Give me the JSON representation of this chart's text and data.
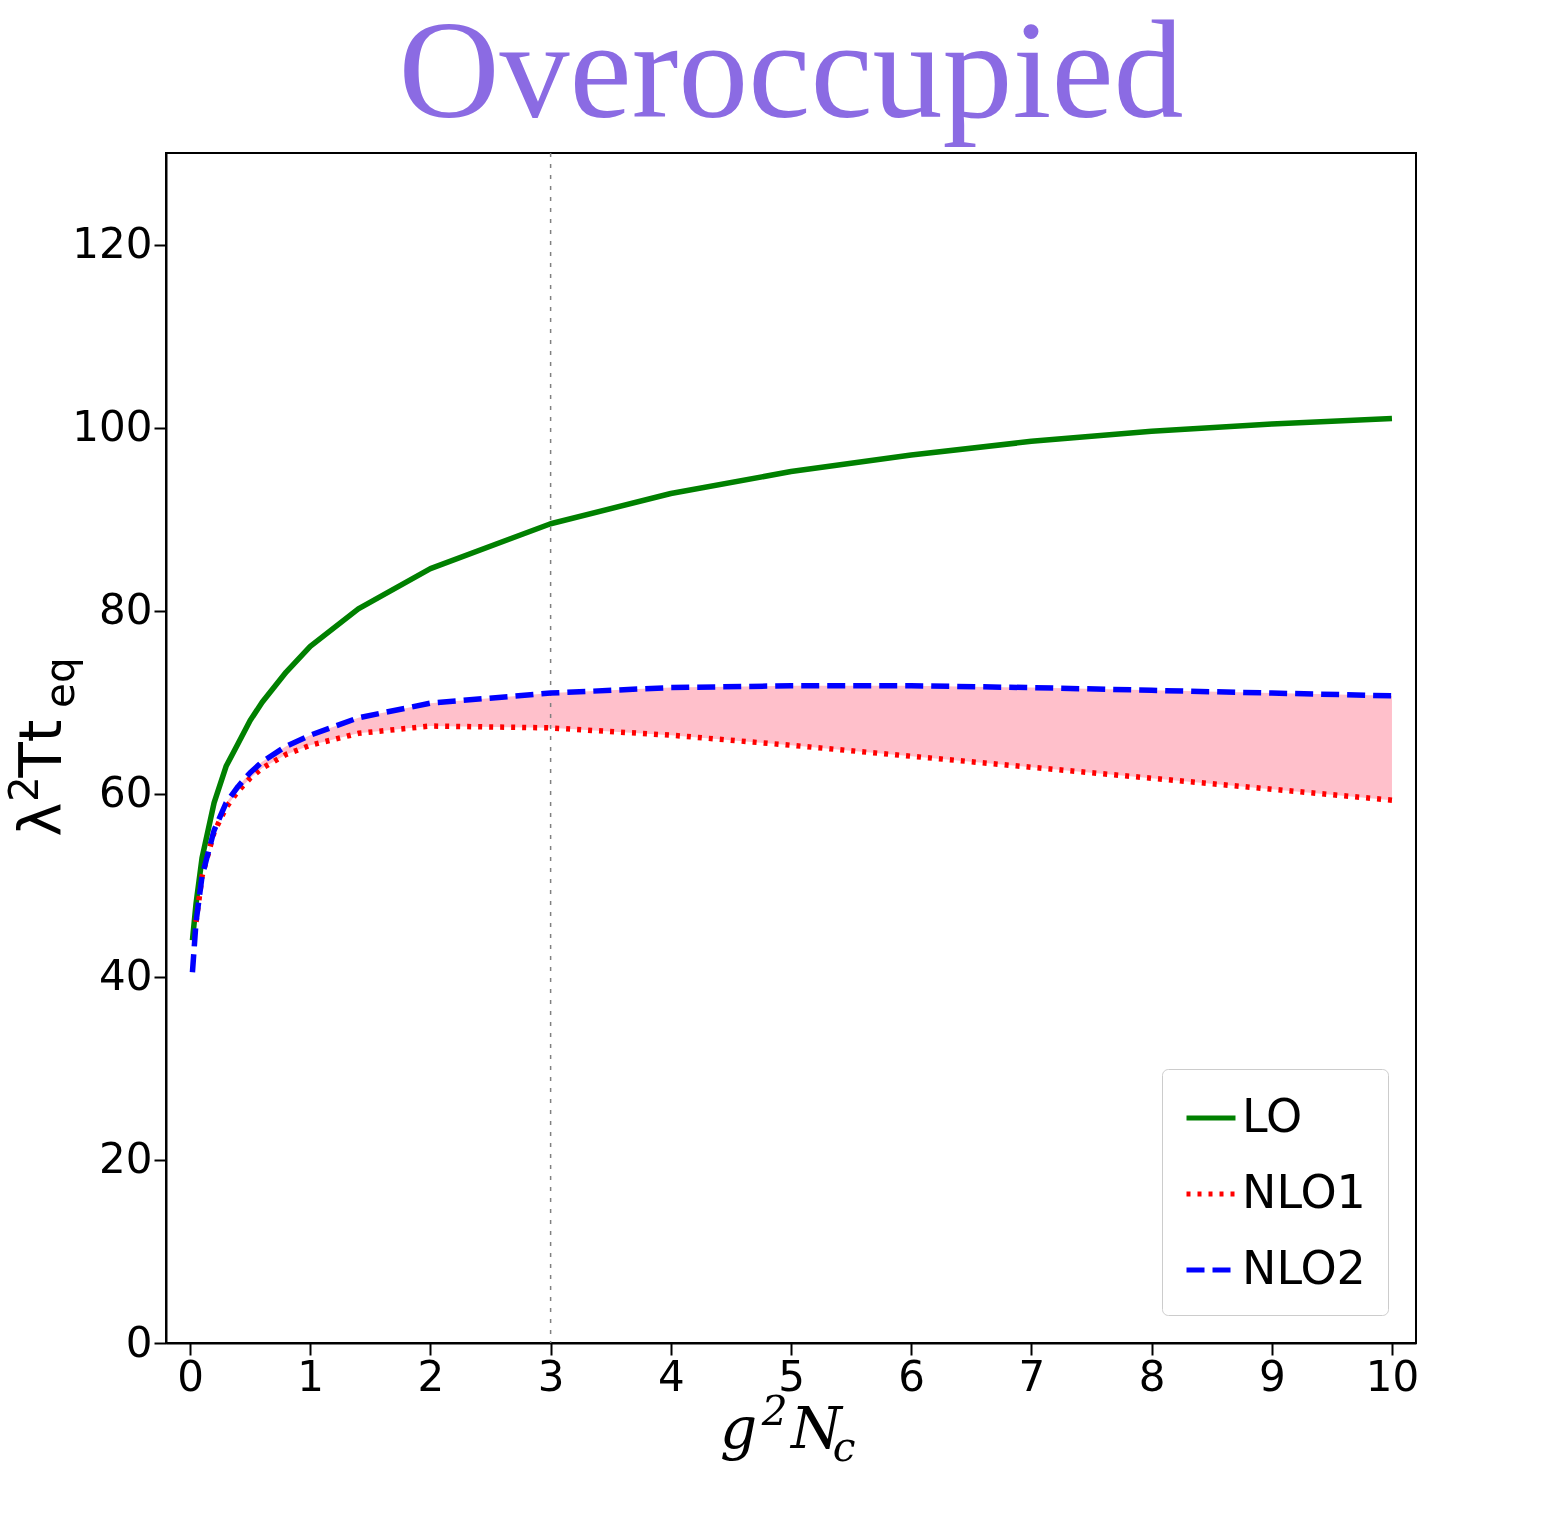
{
  "chart_data": {
    "type": "line",
    "title": "Overoccupied",
    "xlabel": "g$^{2}$N$_{c}$",
    "ylabel": "λ$^{2}$Tt$_{eq}$",
    "x": [
      0.02,
      0.05,
      0.1,
      0.2,
      0.3,
      0.4,
      0.5,
      0.6,
      0.8,
      1.0,
      1.4,
      2,
      3,
      4,
      5,
      6,
      7,
      8,
      9,
      10
    ],
    "series": [
      {
        "name": "LO",
        "color": "#008000",
        "line_style": "solid",
        "values": [
          44,
          48,
          53,
          59,
          63,
          65.5,
          68,
          70,
          73.3,
          76.1,
          80.2,
          84.6,
          89.5,
          92.8,
          95.2,
          97.0,
          98.5,
          99.6,
          100.4,
          101.0
        ]
      },
      {
        "name": "NLO1",
        "color": "#ff0000",
        "line_style": "dotted",
        "values": [
          null,
          46,
          51,
          55.8,
          58.5,
          60.3,
          61.7,
          62.8,
          64.3,
          65.3,
          66.6,
          67.4,
          67.2,
          66.4,
          65.3,
          64.1,
          62.9,
          61.7,
          60.5,
          59.3
        ]
      },
      {
        "name": "NLO2",
        "color": "#0000ff",
        "line_style": "dashed",
        "values": [
          40.5,
          46,
          51,
          56,
          59,
          60.8,
          62.3,
          63.5,
          65.2,
          66.4,
          68.3,
          69.9,
          71.0,
          71.6,
          71.8,
          71.8,
          71.6,
          71.3,
          71.0,
          70.7
        ],
        "lower": [
          40.5,
          46,
          51,
          55.8,
          58.5,
          60.3,
          61.7,
          62.8,
          64.3,
          65.3,
          66.6,
          67.4,
          67.2,
          66.4,
          65.3,
          64.1,
          62.9,
          61.7,
          60.5,
          59.3
        ],
        "upper": [
          40.5,
          46,
          51,
          56,
          59,
          60.8,
          62.3,
          63.5,
          65.2,
          66.4,
          68.3,
          69.9,
          71.0,
          71.6,
          71.8,
          71.8,
          71.6,
          71.3,
          71.0,
          70.7
        ]
      }
    ],
    "xlim": [
      -0.2,
      10.2
    ],
    "ylim": [
      0,
      130
    ],
    "xticks": [
      0,
      1,
      2,
      3,
      4,
      5,
      6,
      7,
      8,
      9,
      10
    ],
    "yticks": [
      0,
      20,
      40,
      60,
      80,
      100,
      120
    ],
    "ref_lines": [
      {
        "axis": "x",
        "value": 3,
        "color": "#808080",
        "line_style": "dotted"
      }
    ],
    "grid": false,
    "legend": "bottom right",
    "marker": "none"
  }
}
